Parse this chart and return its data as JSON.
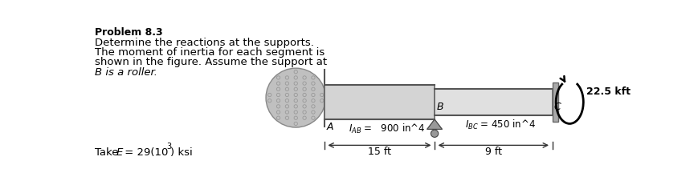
{
  "title": "Problem 8.3",
  "line1": "Determine the reactions at the supports.",
  "line2": "The moment of inertia for each segment is",
  "line3": "shown in the figure. Assume the support at",
  "line4": "B is a roller.",
  "take_e": "Take ",
  "e_italic": "E",
  "e_rest": " = 29(10",
  "e_exp": "3",
  "e_end": ") ksi",
  "label_A": "A",
  "label_B": "B",
  "label_C": "C",
  "IAB_val": " =   900 in^4",
  "IBC_val": " = 450 in^4",
  "dist_AB": "15 ft",
  "dist_BC": "9 ft",
  "moment_label": "22.5 kft",
  "bg_color": "#ffffff",
  "text_color": "#000000",
  "beam_color_AB": "#d4d4d4",
  "beam_color_BC": "#e0e0e0",
  "wall_color": "#c0c0c0",
  "wall_hatch_color": "#999999",
  "roller_color": "#999999",
  "support_C_color": "#aaaaaa",
  "dim_color": "#333333"
}
